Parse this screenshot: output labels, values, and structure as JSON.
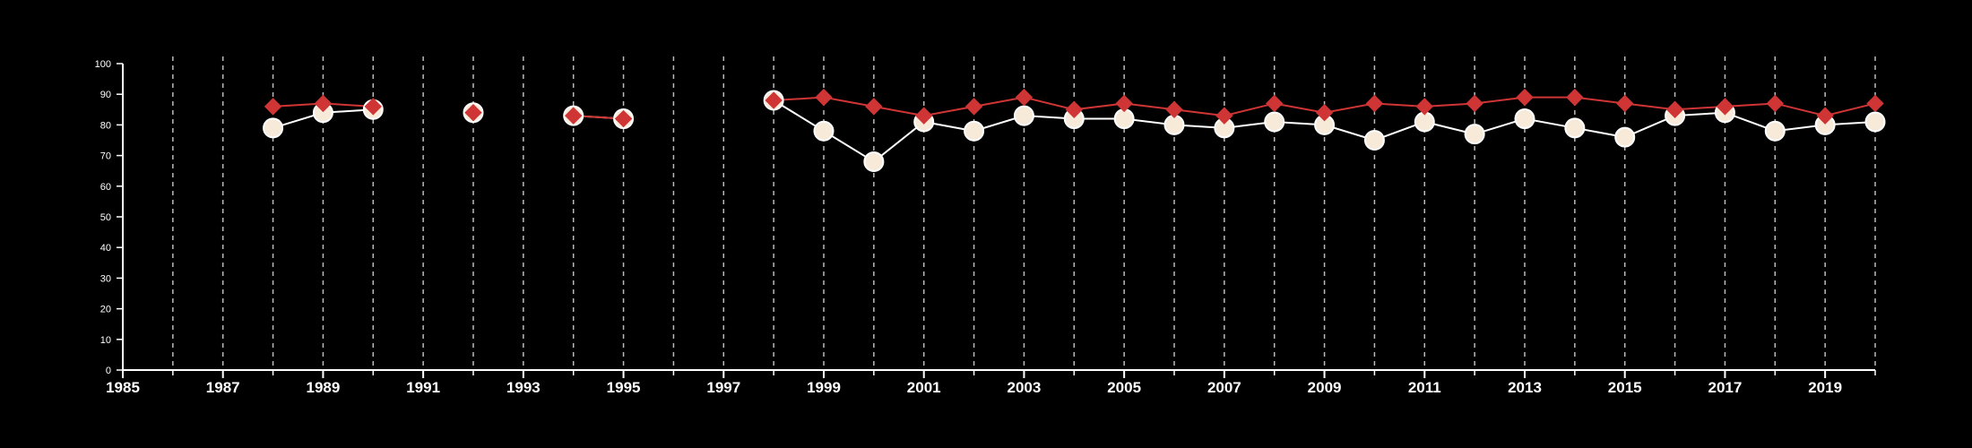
{
  "chart_data": {
    "type": "line",
    "title": "",
    "xlabel": "",
    "ylabel": "",
    "xlim": [
      1985,
      2020
    ],
    "ylim": [
      0,
      100
    ],
    "x_ticks": [
      1985,
      1987,
      1989,
      1991,
      1993,
      1995,
      1997,
      1999,
      2001,
      2003,
      2005,
      2007,
      2009,
      2011,
      2013,
      2015,
      2017,
      2019
    ],
    "y_ticks": [
      0,
      10,
      20,
      30,
      40,
      50,
      60,
      70,
      80,
      90,
      100
    ],
    "vertical_gridlines_at": [
      1986,
      1987,
      1988,
      1989,
      1990,
      1991,
      1992,
      1993,
      1994,
      1995,
      1996,
      1997,
      1998,
      1999,
      2000,
      2001,
      2002,
      2003,
      2004,
      2005,
      2006,
      2007,
      2008,
      2009,
      2010,
      2011,
      2012,
      2013,
      2014,
      2015,
      2016,
      2017,
      2018,
      2019,
      2020
    ],
    "grid": "vertical dashed",
    "legend": "none",
    "colors": {
      "background": "#000000",
      "axis": "#ffffff",
      "grid": "#bbbbbb"
    },
    "series": [
      {
        "marker": "circle",
        "color": "#f7ead9",
        "line_color": "#ffffff",
        "points": [
          [
            1988,
            79
          ],
          [
            1989,
            84
          ],
          [
            1990,
            85
          ],
          [
            1992,
            84
          ],
          [
            1994,
            83
          ],
          [
            1995,
            82
          ],
          [
            1998,
            88
          ],
          [
            1999,
            78
          ],
          [
            2000,
            68
          ],
          [
            2001,
            81
          ],
          [
            2002,
            78
          ],
          [
            2003,
            83
          ],
          [
            2004,
            82
          ],
          [
            2005,
            82
          ],
          [
            2006,
            80
          ],
          [
            2007,
            79
          ],
          [
            2008,
            81
          ],
          [
            2009,
            80
          ],
          [
            2010,
            75
          ],
          [
            2011,
            81
          ],
          [
            2012,
            77
          ],
          [
            2013,
            82
          ],
          [
            2014,
            79
          ],
          [
            2015,
            76
          ],
          [
            2016,
            83
          ],
          [
            2017,
            84
          ],
          [
            2018,
            78
          ],
          [
            2019,
            80
          ],
          [
            2020,
            81
          ]
        ]
      },
      {
        "marker": "diamond",
        "color": "#d03535",
        "line_color": "#d03535",
        "points": [
          [
            1988,
            86
          ],
          [
            1989,
            87
          ],
          [
            1990,
            86
          ],
          [
            1992,
            84
          ],
          [
            1994,
            83
          ],
          [
            1995,
            82
          ],
          [
            1998,
            88
          ],
          [
            1999,
            89
          ],
          [
            2000,
            86
          ],
          [
            2001,
            83
          ],
          [
            2002,
            86
          ],
          [
            2003,
            89
          ],
          [
            2004,
            85
          ],
          [
            2005,
            87
          ],
          [
            2006,
            85
          ],
          [
            2007,
            83
          ],
          [
            2008,
            87
          ],
          [
            2009,
            84
          ],
          [
            2010,
            87
          ],
          [
            2011,
            86
          ],
          [
            2012,
            87
          ],
          [
            2013,
            89
          ],
          [
            2014,
            89
          ],
          [
            2015,
            87
          ],
          [
            2016,
            85
          ],
          [
            2017,
            86
          ],
          [
            2018,
            87
          ],
          [
            2019,
            83
          ],
          [
            2020,
            87
          ]
        ]
      }
    ]
  }
}
